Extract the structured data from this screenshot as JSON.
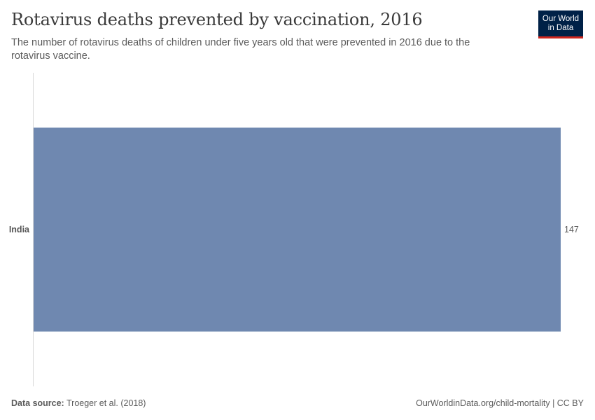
{
  "header": {
    "title": "Rotavirus deaths prevented by vaccination, 2016",
    "subtitle": "The number of rotavirus deaths of children under five years old that were prevented in 2016 due to the rotavirus vaccine.",
    "logo_line1": "Our World",
    "logo_line2": "in Data"
  },
  "footer": {
    "source_label": "Data source:",
    "source_value": "Troeger et al. (2018)",
    "url": "OurWorldinData.org/child-mortality | CC BY"
  },
  "colors": {
    "bar": "#6f88b0",
    "axis": "#dadada",
    "logo_bg": "#002147",
    "logo_accent": "#ce261e"
  },
  "chart_data": {
    "type": "bar",
    "orientation": "horizontal",
    "categories": [
      "India"
    ],
    "values": [
      147
    ],
    "value_labels": [
      "147"
    ],
    "title": "Rotavirus deaths prevented by vaccination, 2016",
    "xlim": [
      0,
      147
    ],
    "grid": false
  }
}
